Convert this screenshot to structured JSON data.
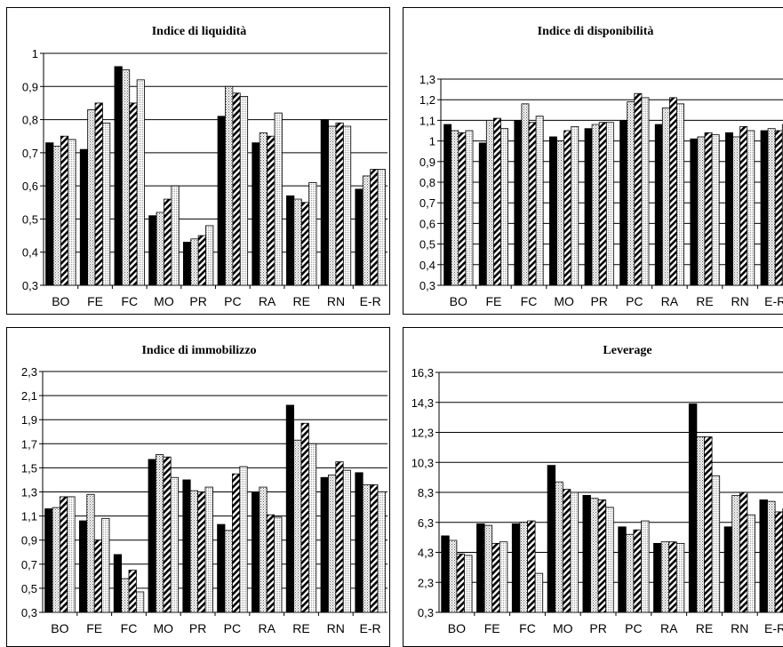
{
  "chart_data": [
    {
      "type": "bar",
      "title": "Indice di liquidità",
      "categories": [
        "BO",
        "FE",
        "FC",
        "MO",
        "PR",
        "PC",
        "RA",
        "RE",
        "RN",
        "E-R"
      ],
      "ylim": [
        0.3,
        1.0
      ],
      "yticks": [
        "0,3",
        "0,4",
        "0,5",
        "0,6",
        "0,7",
        "0,8",
        "0,9",
        "1"
      ],
      "grid": true,
      "series": [
        {
          "pattern": "solid",
          "values": [
            0.73,
            0.71,
            0.96,
            0.51,
            0.43,
            0.81,
            0.73,
            0.57,
            0.8,
            0.59
          ]
        },
        {
          "pattern": "dotted",
          "values": [
            0.72,
            0.83,
            0.95,
            0.52,
            0.44,
            0.9,
            0.76,
            0.56,
            0.78,
            0.63
          ]
        },
        {
          "pattern": "diagonal",
          "values": [
            0.75,
            0.85,
            0.85,
            0.56,
            0.45,
            0.88,
            0.75,
            0.55,
            0.79,
            0.65
          ]
        },
        {
          "pattern": "light",
          "values": [
            0.74,
            0.79,
            0.92,
            0.6,
            0.48,
            0.87,
            0.82,
            0.61,
            0.78,
            0.65
          ]
        }
      ]
    },
    {
      "type": "bar",
      "title": "Indice di disponibilità",
      "categories": [
        "BO",
        "FE",
        "FC",
        "MO",
        "PR",
        "PC",
        "RA",
        "RE",
        "RN",
        "E-R"
      ],
      "ylim": [
        0.3,
        1.3
      ],
      "yticks": [
        "0,3",
        "0,4",
        "0,5",
        "0,6",
        "0,7",
        "0,8",
        "0,9",
        "1",
        "1,1",
        "1,2",
        "1,3"
      ],
      "grid": true,
      "series": [
        {
          "pattern": "solid",
          "values": [
            1.08,
            0.99,
            1.1,
            1.02,
            1.06,
            1.1,
            1.08,
            1.01,
            1.04,
            1.05
          ]
        },
        {
          "pattern": "dotted",
          "values": [
            1.05,
            1.1,
            1.18,
            1.0,
            1.08,
            1.19,
            1.16,
            1.02,
            1.02,
            1.06
          ]
        },
        {
          "pattern": "diagonal",
          "values": [
            1.04,
            1.11,
            1.09,
            1.05,
            1.09,
            1.23,
            1.21,
            1.04,
            1.07,
            1.05
          ]
        },
        {
          "pattern": "light",
          "values": [
            1.05,
            1.06,
            1.12,
            1.07,
            1.09,
            1.21,
            1.18,
            1.03,
            1.05,
            1.08
          ]
        }
      ]
    },
    {
      "type": "bar",
      "title": "Indice di immobilizzo",
      "categories": [
        "BO",
        "FE",
        "FC",
        "MO",
        "PR",
        "PC",
        "RA",
        "RE",
        "RN",
        "E-R"
      ],
      "ylim": [
        0.3,
        2.3
      ],
      "yticks": [
        "0,3",
        "0,5",
        "0,7",
        "0,9",
        "1,1",
        "1,3",
        "1,5",
        "1,7",
        "1,9",
        "2,1",
        "2,3"
      ],
      "grid": true,
      "series": [
        {
          "pattern": "solid",
          "values": [
            1.16,
            1.06,
            0.78,
            1.57,
            1.4,
            1.03,
            1.3,
            2.02,
            1.42,
            1.46
          ]
        },
        {
          "pattern": "dotted",
          "values": [
            1.17,
            1.28,
            0.58,
            1.61,
            1.31,
            0.98,
            1.34,
            1.73,
            1.44,
            1.36
          ]
        },
        {
          "pattern": "diagonal",
          "values": [
            1.26,
            0.9,
            0.65,
            1.59,
            1.3,
            1.45,
            1.11,
            1.87,
            1.55,
            1.36
          ]
        },
        {
          "pattern": "light",
          "values": [
            1.26,
            1.08,
            0.47,
            1.42,
            1.34,
            1.51,
            1.09,
            1.7,
            1.48,
            1.3
          ]
        }
      ]
    },
    {
      "type": "bar",
      "title": "Leverage",
      "categories": [
        "BO",
        "FE",
        "FC",
        "MO",
        "PR",
        "PC",
        "RA",
        "RE",
        "RN",
        "E-R"
      ],
      "ylim": [
        0.3,
        16.3
      ],
      "yticks": [
        "0,3",
        "2,3",
        "4,3",
        "6,3",
        "8,3",
        "10,3",
        "12,3",
        "14,3",
        "16,3"
      ],
      "grid": true,
      "series": [
        {
          "pattern": "solid",
          "values": [
            5.4,
            6.2,
            6.2,
            10.1,
            8.1,
            6.0,
            4.9,
            14.2,
            6.0,
            7.8
          ]
        },
        {
          "pattern": "dotted",
          "values": [
            5.1,
            6.1,
            6.3,
            9.0,
            7.9,
            5.5,
            5.0,
            12.0,
            8.1,
            7.7
          ]
        },
        {
          "pattern": "diagonal",
          "values": [
            4.2,
            4.9,
            6.4,
            8.5,
            7.8,
            5.8,
            5.0,
            12.0,
            8.3,
            7.0
          ]
        },
        {
          "pattern": "light",
          "values": [
            4.1,
            5.0,
            2.9,
            8.3,
            7.3,
            6.4,
            4.9,
            9.4,
            6.8,
            7.2
          ]
        }
      ]
    }
  ]
}
